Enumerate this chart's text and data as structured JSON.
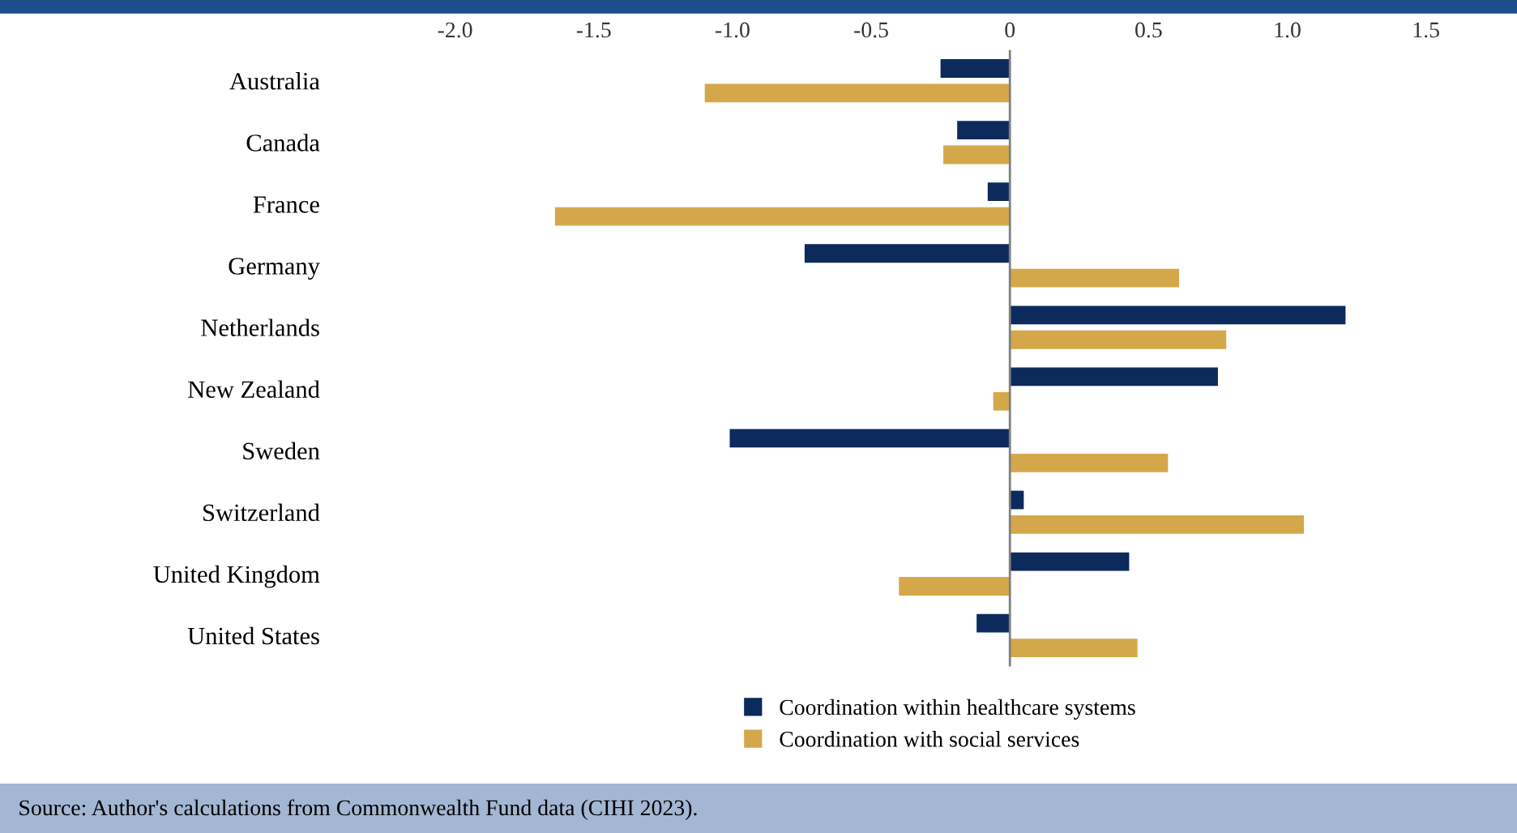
{
  "chart_data": {
    "type": "bar",
    "orientation": "horizontal",
    "categories": [
      "Australia",
      "Canada",
      "France",
      "Germany",
      "Netherlands",
      "New Zealand",
      "Sweden",
      "Switzerland",
      "United Kingdom",
      "United States"
    ],
    "series": [
      {
        "name": "Coordination within healthcare systems",
        "color": "#0d2a5c",
        "values": [
          -0.25,
          -0.19,
          -0.08,
          -0.74,
          1.21,
          0.75,
          -1.01,
          0.05,
          0.43,
          -0.12
        ]
      },
      {
        "name": "Coordination with social services",
        "color": "#d4a84a",
        "values": [
          -1.1,
          -0.24,
          -1.64,
          0.61,
          0.78,
          -0.06,
          0.57,
          1.06,
          -0.4,
          0.46
        ]
      }
    ],
    "xlim": [
      -2.0,
      1.5
    ],
    "xticks": [
      {
        "value": -2.0,
        "label": "-2.0"
      },
      {
        "value": -1.5,
        "label": "-1.5"
      },
      {
        "value": -1.0,
        "label": "-1.0"
      },
      {
        "value": -0.5,
        "label": "-0.5"
      },
      0,
      {
        "value": 0.5,
        "label": "0.5"
      },
      {
        "value": 1.0,
        "label": "1.0"
      },
      {
        "value": 1.5,
        "label": "1.5"
      }
    ],
    "ref_lines": [
      {
        "axis": "x",
        "value": 0,
        "color": "#808080"
      }
    ],
    "grid": false,
    "legend": "bottom",
    "annotations": [
      "Source: Author's calculations from Commonwealth Fund data (CIHI 2023)."
    ]
  }
}
